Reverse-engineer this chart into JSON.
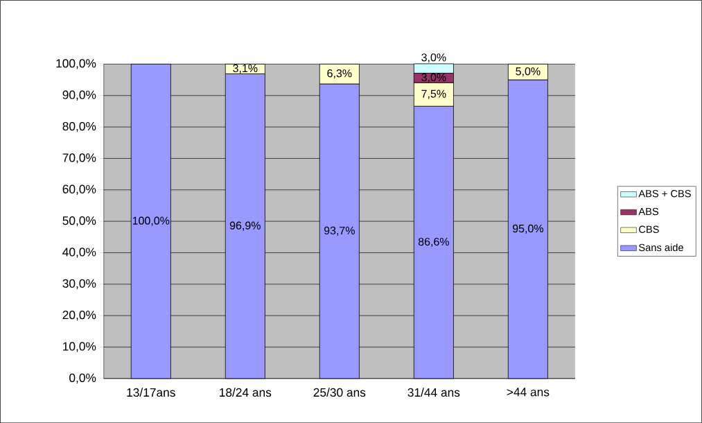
{
  "chart_data": {
    "type": "bar",
    "stacked": true,
    "categories": [
      "13/17ans",
      "18/24 ans",
      "25/30 ans",
      "31/44 ans",
      ">44 ans"
    ],
    "series": [
      {
        "name": "Sans aide",
        "color": "#9999ff",
        "values": [
          100.0,
          96.9,
          93.7,
          86.6,
          95.0
        ],
        "value_labels": [
          "100,0%",
          "96,9%",
          "93,7%",
          "86,6%",
          "95,0%"
        ]
      },
      {
        "name": "CBS",
        "color": "#ffffcc",
        "values": [
          null,
          3.1,
          6.3,
          7.5,
          5.0
        ],
        "value_labels": [
          null,
          "3,1%",
          "6,3%",
          "7,5%",
          "5,0%"
        ]
      },
      {
        "name": "ABS",
        "color": "#993366",
        "values": [
          null,
          null,
          null,
          3.0,
          null
        ],
        "value_labels": [
          null,
          null,
          null,
          "3,0%",
          null
        ]
      },
      {
        "name": "ABS + CBS",
        "color": "#ccffff",
        "values": [
          null,
          null,
          null,
          3.0,
          null
        ],
        "value_labels": [
          null,
          null,
          null,
          "3,0%",
          null
        ]
      }
    ],
    "ylim": [
      0,
      100
    ],
    "yticks": [
      {
        "value": 0,
        "label": "0,0%"
      },
      {
        "value": 10,
        "label": "10,0%"
      },
      {
        "value": 20,
        "label": "20,0%"
      },
      {
        "value": 30,
        "label": "30,0%"
      },
      {
        "value": 40,
        "label": "40,0%"
      },
      {
        "value": 50,
        "label": "50,0%"
      },
      {
        "value": 60,
        "label": "60,0%"
      },
      {
        "value": 70,
        "label": "70,0%"
      },
      {
        "value": 80,
        "label": "80,0%"
      },
      {
        "value": 90,
        "label": "90,0%"
      },
      {
        "value": 100,
        "label": "100,0%"
      }
    ],
    "grid": "y",
    "legend": "right"
  }
}
